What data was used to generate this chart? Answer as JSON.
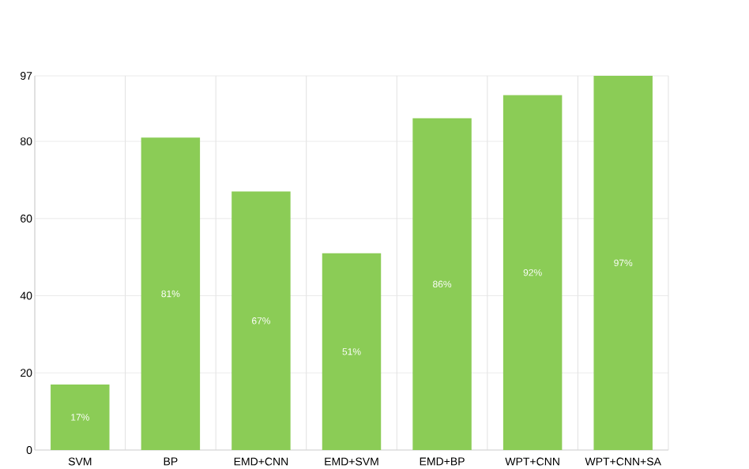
{
  "chart_data": {
    "type": "bar",
    "categories": [
      "SVM",
      "BP",
      "EMD+CNN",
      "EMD+SVM",
      "EMD+BP",
      "WPT+CNN",
      "WPT+CNN+SA"
    ],
    "values": [
      17,
      81,
      67,
      51,
      86,
      92,
      97
    ],
    "value_labels": [
      "17%",
      "81%",
      "67%",
      "51%",
      "86%",
      "92%",
      "97%"
    ],
    "color": "#8bcc56",
    "ylim": [
      0,
      97
    ],
    "yticks": [
      0,
      20,
      40,
      60,
      80,
      97
    ],
    "grid": true
  }
}
